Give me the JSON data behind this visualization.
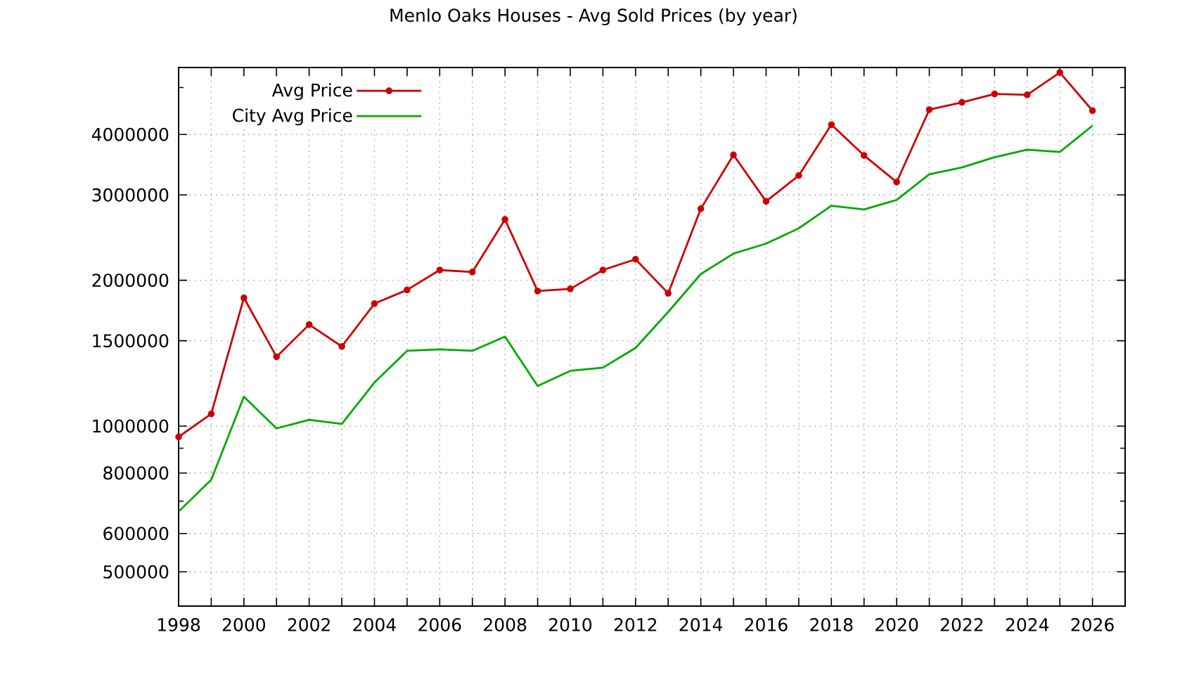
{
  "chart_data": {
    "type": "line",
    "title": "Menlo Oaks Houses - Avg Sold Prices (by year)",
    "x": [
      1998,
      1999,
      2000,
      2001,
      2002,
      2003,
      2004,
      2005,
      2006,
      2007,
      2008,
      2009,
      2010,
      2011,
      2012,
      2013,
      2014,
      2015,
      2016,
      2017,
      2018,
      2019,
      2020,
      2021,
      2022,
      2023,
      2024,
      2025,
      2026
    ],
    "series": [
      {
        "name": "Avg Price",
        "color": "#cc0000",
        "marker": "circle",
        "values": [
          950000,
          1060000,
          1840000,
          1390000,
          1620000,
          1460000,
          1790000,
          1910000,
          2100000,
          2080000,
          2670000,
          1900000,
          1920000,
          2100000,
          2210000,
          1880000,
          2810000,
          3630000,
          2910000,
          3290000,
          4190000,
          3620000,
          3190000,
          4500000,
          4660000,
          4850000,
          4830000,
          5370000,
          4480000
        ]
      },
      {
        "name": "City Avg Price",
        "color": "#00aa00",
        "marker": "none",
        "values": [
          666000,
          775000,
          1150000,
          989000,
          1030000,
          1010000,
          1230000,
          1430000,
          1440000,
          1430000,
          1530000,
          1210000,
          1300000,
          1320000,
          1450000,
          1720000,
          2060000,
          2270000,
          2380000,
          2560000,
          2850000,
          2800000,
          2930000,
          3310000,
          3420000,
          3590000,
          3720000,
          3680000,
          4170000
        ]
      }
    ],
    "xlim": [
      1998,
      2027
    ],
    "ylim": [
      425000,
      5500000
    ],
    "xticks": [
      1998,
      {
        "value": 1999,
        "label": null
      },
      2000,
      {
        "value": 2001,
        "label": null
      },
      2002,
      {
        "value": 2003,
        "label": null
      },
      2004,
      {
        "value": 2005,
        "label": null
      },
      2006,
      {
        "value": 2007,
        "label": null
      },
      2008,
      {
        "value": 2009,
        "label": null
      },
      2010,
      {
        "value": 2011,
        "label": null
      },
      2012,
      {
        "value": 2013,
        "label": null
      },
      2014,
      {
        "value": 2015,
        "label": null
      },
      2016,
      {
        "value": 2017,
        "label": null
      },
      2018,
      {
        "value": 2019,
        "label": null
      },
      2020,
      {
        "value": 2021,
        "label": null
      },
      2022,
      {
        "value": 2023,
        "label": null
      },
      2024,
      {
        "value": 2025,
        "label": null
      },
      2026
    ],
    "yticks": [
      500000,
      600000,
      {
        "value": 700000,
        "label": null
      },
      800000,
      {
        "value": 900000,
        "label": null
      },
      1000000,
      1500000,
      2000000,
      3000000,
      4000000,
      {
        "value": 5000000,
        "label": null
      }
    ],
    "log": "y",
    "grid": true,
    "legend": "top left",
    "line_style": "solid"
  }
}
